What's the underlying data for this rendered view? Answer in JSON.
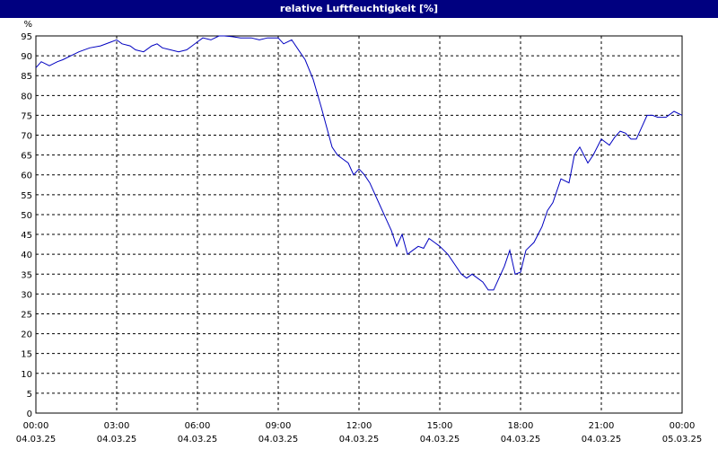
{
  "window": {
    "title": "relative Luftfeuchtigkeit [%]"
  },
  "colors": {
    "titlebar": "#000080",
    "line": "#0000c0",
    "grid": "#000000"
  },
  "chart_data": {
    "type": "line",
    "title": "relative Luftfeuchtigkeit [%]",
    "ylabel": "%",
    "xlabel": "",
    "ylim": [
      0,
      95
    ],
    "yticks": [
      0,
      5,
      10,
      15,
      20,
      25,
      30,
      35,
      40,
      45,
      50,
      55,
      60,
      65,
      70,
      75,
      80,
      85,
      90,
      95
    ],
    "xlim_hours": [
      0,
      24
    ],
    "grid": true,
    "x_ticks": [
      {
        "hour": 0,
        "time": "00:00",
        "date": "04.03.25"
      },
      {
        "hour": 3,
        "time": "03:00",
        "date": "04.03.25"
      },
      {
        "hour": 6,
        "time": "06:00",
        "date": "04.03.25"
      },
      {
        "hour": 9,
        "time": "09:00",
        "date": "04.03.25"
      },
      {
        "hour": 12,
        "time": "12:00",
        "date": "04.03.25"
      },
      {
        "hour": 15,
        "time": "15:00",
        "date": "04.03.25"
      },
      {
        "hour": 18,
        "time": "18:00",
        "date": "04.03.25"
      },
      {
        "hour": 21,
        "time": "21:00",
        "date": "04.03.25"
      },
      {
        "hour": 24,
        "time": "00:00",
        "date": "05.03.25"
      }
    ],
    "series": [
      {
        "x": [
          0,
          0.2,
          0.5,
          0.8,
          1.0,
          1.3,
          1.6,
          2.0,
          2.4,
          2.8,
          3.0,
          3.2,
          3.5,
          3.7,
          4.0,
          4.3,
          4.5,
          4.7,
          5.0,
          5.3,
          5.6,
          5.8,
          6.0,
          6.2,
          6.5,
          6.8,
          7.0,
          7.3,
          7.6,
          8.0,
          8.3,
          8.6,
          9.0,
          9.2,
          9.5,
          9.8,
          10.0,
          10.3,
          10.6,
          10.8,
          11.0,
          11.2,
          11.4,
          11.6,
          11.8,
          12.0,
          12.2,
          12.4,
          12.7,
          13.0,
          13.2,
          13.4,
          13.6,
          13.8,
          14.0,
          14.2,
          14.4,
          14.6,
          14.8,
          15.0,
          15.3,
          15.6,
          15.8,
          16.0,
          16.2,
          16.4,
          16.6,
          16.8,
          17.0,
          17.2,
          17.4,
          17.6,
          17.8,
          18.0,
          18.2,
          18.5,
          18.8,
          19.0,
          19.2,
          19.5,
          19.8,
          20.0,
          20.2,
          20.5,
          20.7,
          21.0,
          21.3,
          21.5,
          21.7,
          21.9,
          22.1,
          22.3,
          22.5,
          22.7,
          22.9,
          23.1,
          23.4,
          23.7,
          24.0
        ],
        "y": [
          87,
          88.5,
          87.5,
          88.5,
          89,
          90,
          91,
          92,
          92.5,
          93.5,
          94,
          93,
          92.5,
          91.5,
          91,
          92.5,
          93,
          92,
          91.5,
          91,
          91.5,
          92.5,
          93.5,
          94.5,
          94,
          95,
          95,
          94.8,
          94.5,
          94.5,
          94,
          94.5,
          94.5,
          93,
          94,
          91,
          89,
          84,
          77,
          72,
          67,
          65,
          64,
          63,
          60,
          61.5,
          60,
          58,
          53.5,
          49,
          46,
          42,
          45,
          40,
          41,
          42,
          41.5,
          44,
          43,
          42,
          40,
          37,
          35,
          34,
          35,
          34,
          33,
          31,
          31,
          34,
          37,
          41,
          35,
          35.5,
          41,
          43,
          47,
          51,
          53,
          59,
          58,
          65,
          67,
          63,
          65,
          69,
          67.5,
          69.5,
          71,
          70.5,
          69,
          69,
          72,
          75,
          75,
          74.5,
          74.5,
          76,
          75
        ]
      }
    ]
  }
}
